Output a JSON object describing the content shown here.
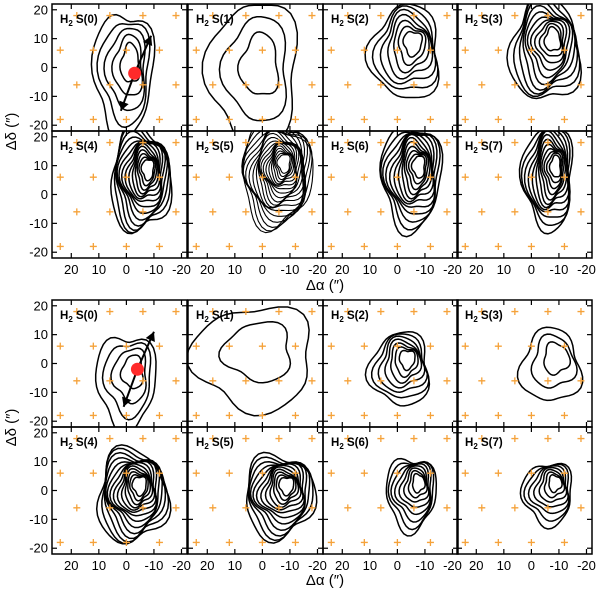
{
  "chart_data": {
    "type": "contour",
    "figure_groups": [
      {
        "name": "top",
        "panels": [
          {
            "label_main": "H",
            "label_sub": "2",
            "label_rest": " S(0)",
            "peak": [
              -2,
              2
            ],
            "spread": [
              6,
              12
            ],
            "levels": 5,
            "arrow": true,
            "marker": [
              -3,
              -2
            ]
          },
          {
            "label_main": "H",
            "label_sub": "2",
            "label_rest": " S(1)",
            "peak": [
              0,
              2
            ],
            "spread": [
              9,
              14
            ],
            "levels": 3,
            "arrow": false,
            "marker": null
          },
          {
            "label_main": "H",
            "label_sub": "2",
            "label_rest": " S(2)",
            "peak": [
              -6,
              9
            ],
            "spread": [
              7,
              9
            ],
            "levels": 7,
            "arrow": false,
            "marker": null
          },
          {
            "label_main": "H",
            "label_sub": "2",
            "label_rest": " S(3)",
            "peak": [
              -8,
              10
            ],
            "spread": [
              7,
              10
            ],
            "levels": 10,
            "arrow": false,
            "marker": null
          },
          {
            "label_main": "H",
            "label_sub": "2",
            "label_rest": " S(4)",
            "peak": [
              -8,
              9
            ],
            "spread": [
              6,
              10
            ],
            "levels": 14,
            "arrow": false,
            "marker": null
          },
          {
            "label_main": "H",
            "label_sub": "2",
            "label_rest": " S(5)",
            "peak": [
              -8,
              11
            ],
            "spread": [
              7,
              10
            ],
            "levels": 22,
            "arrow": false,
            "marker": null
          },
          {
            "label_main": "H",
            "label_sub": "2",
            "label_rest": " S(6)",
            "peak": [
              -8,
              10
            ],
            "spread": [
              6,
              10
            ],
            "levels": 12,
            "arrow": false,
            "marker": null
          },
          {
            "label_main": "H",
            "label_sub": "2",
            "label_rest": " S(7)",
            "peak": [
              -9,
              10
            ],
            "spread": [
              5,
              10
            ],
            "levels": 12,
            "arrow": false,
            "marker": null
          }
        ]
      },
      {
        "name": "bottom",
        "panels": [
          {
            "label_main": "H",
            "label_sub": "2",
            "label_rest": " S(0)",
            "peak": [
              -3,
              -2
            ],
            "spread": [
              6,
              9
            ],
            "levels": 4,
            "arrow": true,
            "marker": [
              -4,
              -2
            ]
          },
          {
            "label_main": "H",
            "label_sub": "2",
            "label_rest": " S(1)",
            "peak": [
              0,
              6
            ],
            "spread": [
              12,
              10
            ],
            "levels": 2,
            "arrow": false,
            "marker": null
          },
          {
            "label_main": "H",
            "label_sub": "2",
            "label_rest": " S(2)",
            "peak": [
              -4,
              2
            ],
            "spread": [
              6,
              7
            ],
            "levels": 7,
            "arrow": false,
            "marker": null
          },
          {
            "label_main": "H",
            "label_sub": "2",
            "label_rest": " S(3)",
            "peak": [
              -10,
              3
            ],
            "spread": [
              6,
              7
            ],
            "levels": 3,
            "arrow": false,
            "marker": null
          },
          {
            "label_main": "H",
            "label_sub": "2",
            "label_rest": " S(4)",
            "peak": [
              -5,
              2
            ],
            "spread": [
              7,
              9
            ],
            "levels": 14,
            "arrow": false,
            "marker": null
          },
          {
            "label_main": "H",
            "label_sub": "2",
            "label_rest": " S(5)",
            "peak": [
              -9,
              2
            ],
            "spread": [
              7,
              8
            ],
            "levels": 12,
            "arrow": false,
            "marker": null
          },
          {
            "label_main": "H",
            "label_sub": "2",
            "label_rest": " S(6)",
            "peak": [
              -8,
              3
            ],
            "spread": [
              5,
              7
            ],
            "levels": 8,
            "arrow": false,
            "marker": null
          },
          {
            "label_main": "H",
            "label_sub": "2",
            "label_rest": " S(7)",
            "peak": [
              -9,
              3
            ],
            "spread": [
              5,
              6
            ],
            "levels": 7,
            "arrow": false,
            "marker": null
          }
        ]
      }
    ],
    "xlim": [
      27,
      -22
    ],
    "ylim": [
      -22,
      22
    ],
    "x_ticks": [
      20,
      10,
      0,
      -10,
      -20
    ],
    "x_tick_labels": [
      "20",
      "10",
      "0",
      "-10",
      "-20"
    ],
    "y_ticks": [
      20,
      10,
      0,
      -10,
      -20
    ],
    "y_tick_labels": [
      "20",
      "10",
      "0",
      "-10",
      "-20"
    ],
    "xlabel_main": "Δα (",
    "xlabel_end": "″)",
    "ylabel_main": "Δδ (",
    "ylabel_end": "″)",
    "grid_offsets_x": [
      24,
      12,
      0,
      -12
    ],
    "grid_offsets_y": [
      -18,
      -6,
      6,
      18
    ],
    "colors": {
      "contour": "#000000",
      "grid_points": "#f5a23a",
      "marker": "#ff2a2a",
      "frame": "#000000"
    }
  }
}
